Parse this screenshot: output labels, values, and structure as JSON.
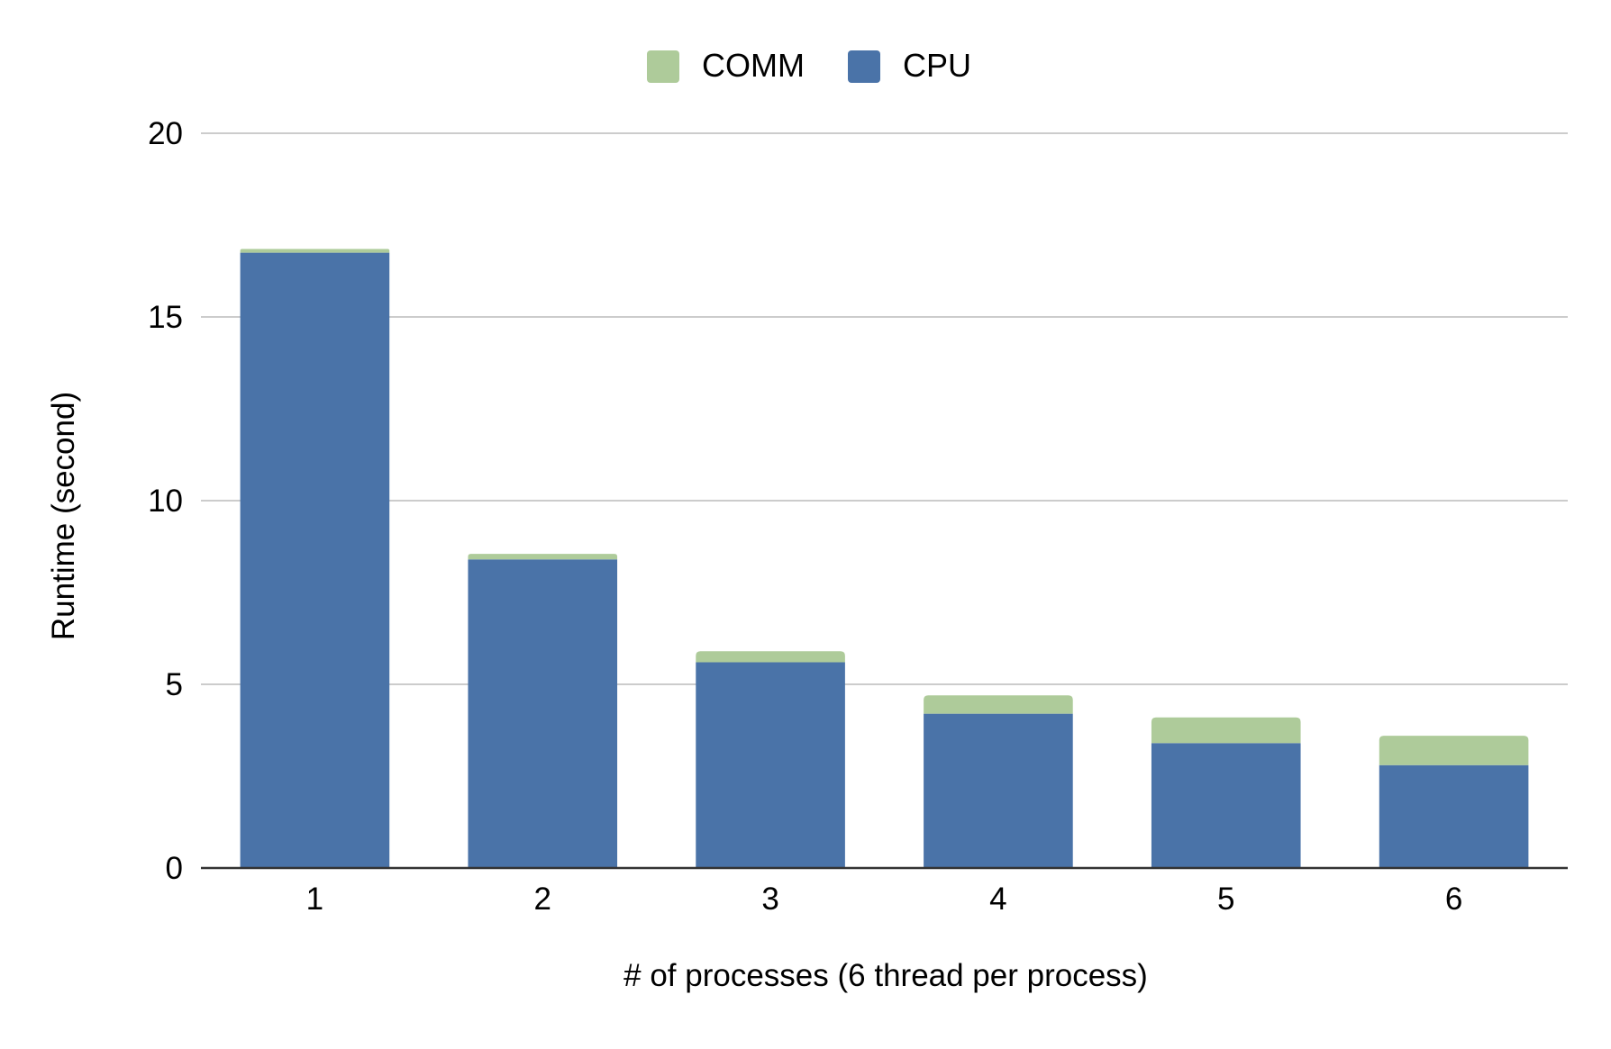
{
  "chart_data": {
    "type": "bar",
    "stacked": true,
    "title": "",
    "xlabel": "# of processes (6 thread per process)",
    "ylabel": "Runtime (second)",
    "categories": [
      "1",
      "2",
      "3",
      "4",
      "5",
      "6"
    ],
    "series": [
      {
        "name": "CPU",
        "color": "#4a73a8",
        "values": [
          16.75,
          8.4,
          5.6,
          4.2,
          3.4,
          2.8
        ]
      },
      {
        "name": "COMM",
        "color": "#aecb9a",
        "values": [
          0.1,
          0.15,
          0.3,
          0.5,
          0.7,
          0.8
        ]
      }
    ],
    "legend": {
      "position": "top-center",
      "order": [
        "COMM",
        "CPU"
      ]
    },
    "ylim": [
      0,
      20
    ],
    "yticks": [
      "0",
      "5",
      "10",
      "15",
      "20"
    ],
    "grid": true,
    "colors": {
      "grid": "#cccccc",
      "axis": "#333333"
    }
  }
}
